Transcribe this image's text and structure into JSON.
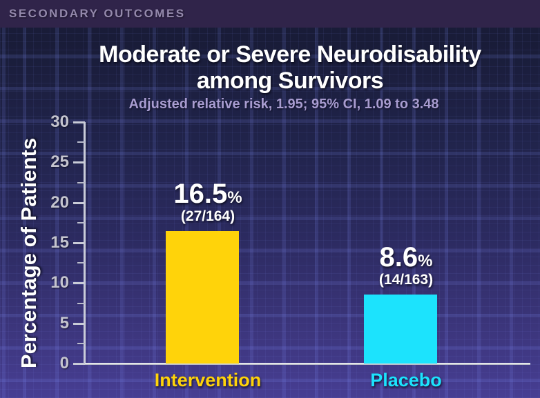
{
  "header": {
    "label": "SECONDARY OUTCOMES"
  },
  "title": {
    "line1": "Moderate or Severe Neurodisability",
    "line2": "among Survivors"
  },
  "subtitle": "Adjusted relative risk, 1.95; 95% CI, 1.09 to 3.48",
  "chart_data": {
    "type": "bar",
    "title": "Moderate or Severe Neurodisability among Survivors",
    "subtitle": "Adjusted relative risk, 1.95; 95% CI, 1.09 to 3.48",
    "categories": [
      "Intervention",
      "Placebo"
    ],
    "values": [
      16.5,
      8.6
    ],
    "bars": [
      {
        "category": "Intervention",
        "value": 16.5,
        "value_label": "16.5",
        "unit": "%",
        "fraction": "(27/164)",
        "color": "#FFD30A"
      },
      {
        "category": "Placebo",
        "value": 8.6,
        "value_label": "8.6",
        "unit": "%",
        "fraction": "(14/163)",
        "color": "#1CE3FD"
      }
    ],
    "xlabel": "",
    "ylabel": "Percentage of Patients",
    "ylim": [
      0,
      30
    ],
    "y_ticks": [
      0,
      5,
      10,
      15,
      20,
      25,
      30
    ],
    "y_minor_tick_step": 2.5,
    "legend_position": "none",
    "grid": "decorative-background-only"
  },
  "colors": {
    "background_top": "#1A1D38",
    "background_bottom": "#473E93",
    "header_band": "#30244A",
    "header_text": "#9489AC",
    "title_text": "#FFFFFF",
    "subtitle_text": "#A89CD0",
    "axis": "#C9CCD8",
    "tick_label_text": "#C4C4CE",
    "bar_intervention": "#FFD30A",
    "bar_placebo": "#1CE3FD"
  }
}
